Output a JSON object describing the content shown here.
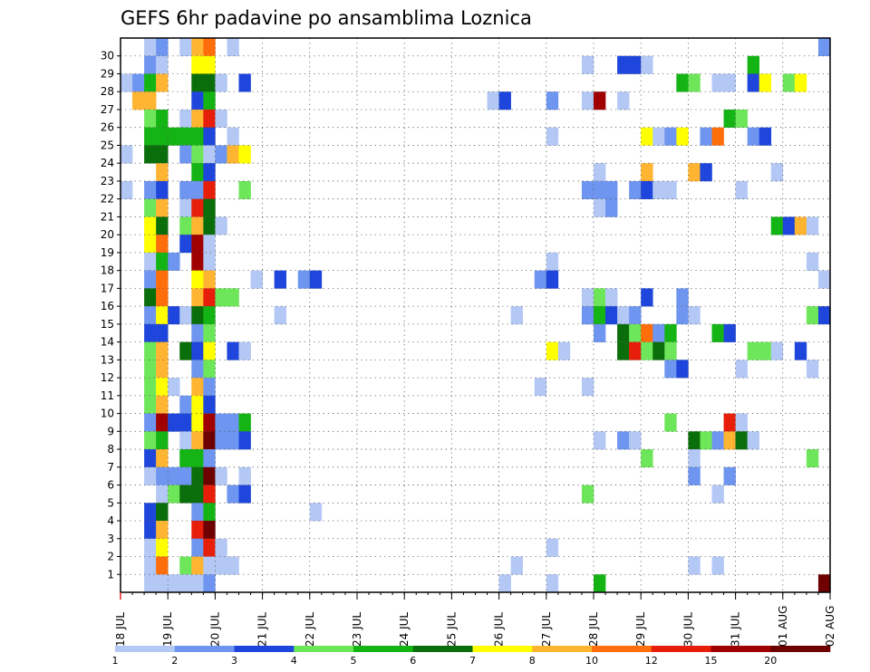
{
  "chart_data": {
    "type": "heatmap",
    "title": "GEFS 6hr padavine po ansamblima Loznica",
    "xlabel": "",
    "ylabel": "",
    "x_tick_labels": [
      "18 JUL",
      "19 JUL",
      "20 JUL",
      "21 JUL",
      "22 JUL",
      "23 JUL",
      "24 JUL",
      "25 JUL",
      "26 JUL",
      "27 JUL",
      "28 JUL",
      "29 JUL",
      "30 JUL",
      "31 JUL",
      "01 AUG",
      "02 AUG"
    ],
    "y_tick_labels": [
      "1",
      "2",
      "3",
      "4",
      "5",
      "6",
      "7",
      "8",
      "9",
      "10",
      "11",
      "12",
      "13",
      "14",
      "15",
      "16",
      "17",
      "18",
      "19",
      "20",
      "21",
      "22",
      "23",
      "24",
      "25",
      "26",
      "27",
      "28",
      "29",
      "30"
    ],
    "x_period": "6hr",
    "grid": true,
    "legend_position": "bottom",
    "legend": {
      "labels": [
        "1",
        "2",
        "3",
        "4",
        "5",
        "6",
        "7",
        "8",
        "10",
        "12",
        "15",
        "20"
      ],
      "colors": [
        "#b4c8f5",
        "#6e96f0",
        "#1e46dc",
        "#6ee65a",
        "#14b414",
        "#0a6e0a",
        "#ffff00",
        "#ffb432",
        "#ff6e0a",
        "#e61e0a",
        "#a00000",
        "#6e0000"
      ]
    },
    "cells": [
      {
        "m": 30,
        "t": [
          [
            2,
            0
          ],
          [
            3,
            1
          ],
          [
            5,
            0
          ],
          [
            6,
            7
          ],
          [
            7,
            8
          ],
          [
            9,
            0
          ],
          [
            59,
            1
          ]
        ]
      },
      {
        "m": 29,
        "t": [
          [
            2,
            1
          ],
          [
            3,
            0
          ],
          [
            6,
            6
          ],
          [
            7,
            6
          ],
          [
            39,
            0
          ],
          [
            42,
            2
          ],
          [
            43,
            2
          ],
          [
            44,
            0
          ],
          [
            53,
            4
          ]
        ]
      },
      {
        "m": 28,
        "t": [
          [
            0,
            0
          ],
          [
            1,
            1
          ],
          [
            2,
            4
          ],
          [
            3,
            7
          ],
          [
            6,
            5
          ],
          [
            7,
            5
          ],
          [
            8,
            0
          ],
          [
            10,
            2
          ],
          [
            47,
            4
          ],
          [
            48,
            3
          ],
          [
            50,
            0
          ],
          [
            51,
            0
          ],
          [
            53,
            2
          ],
          [
            54,
            6
          ],
          [
            56,
            3
          ],
          [
            57,
            6
          ]
        ]
      },
      {
        "m": 27,
        "t": [
          [
            1,
            7
          ],
          [
            2,
            7
          ],
          [
            6,
            2
          ],
          [
            7,
            4
          ],
          [
            31,
            0
          ],
          [
            32,
            2
          ],
          [
            36,
            1
          ],
          [
            39,
            0
          ],
          [
            40,
            10
          ],
          [
            42,
            0
          ]
        ]
      },
      {
        "m": 26,
        "t": [
          [
            2,
            3
          ],
          [
            3,
            4
          ],
          [
            5,
            0
          ],
          [
            6,
            7
          ],
          [
            7,
            9
          ],
          [
            8,
            0
          ],
          [
            51,
            4
          ],
          [
            52,
            3
          ]
        ]
      },
      {
        "m": 25,
        "t": [
          [
            2,
            4
          ],
          [
            3,
            4
          ],
          [
            4,
            4
          ],
          [
            5,
            4
          ],
          [
            6,
            4
          ],
          [
            7,
            2
          ],
          [
            9,
            0
          ],
          [
            36,
            0
          ],
          [
            44,
            6
          ],
          [
            45,
            0
          ],
          [
            46,
            1
          ],
          [
            47,
            6
          ],
          [
            49,
            1
          ],
          [
            50,
            8
          ],
          [
            53,
            1
          ],
          [
            54,
            2
          ]
        ]
      },
      {
        "m": 24,
        "t": [
          [
            0,
            0
          ],
          [
            2,
            5
          ],
          [
            3,
            5
          ],
          [
            5,
            1
          ],
          [
            6,
            3
          ],
          [
            7,
            0
          ],
          [
            8,
            1
          ],
          [
            9,
            7
          ],
          [
            10,
            6
          ]
        ]
      },
      {
        "m": 23,
        "t": [
          [
            3,
            7
          ],
          [
            6,
            4
          ],
          [
            7,
            2
          ],
          [
            40,
            0
          ],
          [
            44,
            7
          ],
          [
            48,
            7
          ],
          [
            49,
            2
          ],
          [
            55,
            0
          ]
        ]
      },
      {
        "m": 22,
        "t": [
          [
            0,
            0
          ],
          [
            2,
            1
          ],
          [
            3,
            2
          ],
          [
            5,
            1
          ],
          [
            6,
            1
          ],
          [
            7,
            9
          ],
          [
            10,
            3
          ],
          [
            39,
            1
          ],
          [
            40,
            1
          ],
          [
            41,
            1
          ],
          [
            43,
            1
          ],
          [
            44,
            2
          ],
          [
            45,
            0
          ],
          [
            46,
            0
          ],
          [
            52,
            0
          ]
        ]
      },
      {
        "m": 21,
        "t": [
          [
            2,
            3
          ],
          [
            3,
            7
          ],
          [
            5,
            0
          ],
          [
            6,
            9
          ],
          [
            7,
            5
          ],
          [
            40,
            0
          ],
          [
            41,
            1
          ]
        ]
      },
      {
        "m": 20,
        "t": [
          [
            2,
            6
          ],
          [
            3,
            5
          ],
          [
            5,
            3
          ],
          [
            6,
            7
          ],
          [
            7,
            5
          ],
          [
            8,
            0
          ],
          [
            55,
            4
          ],
          [
            56,
            2
          ],
          [
            57,
            7
          ],
          [
            58,
            0
          ]
        ]
      },
      {
        "m": 19,
        "t": [
          [
            2,
            6
          ],
          [
            3,
            8
          ],
          [
            5,
            2
          ],
          [
            6,
            10
          ],
          [
            7,
            0
          ]
        ]
      },
      {
        "m": 18,
        "t": [
          [
            2,
            0
          ],
          [
            3,
            4
          ],
          [
            4,
            1
          ],
          [
            6,
            10
          ],
          [
            7,
            0
          ],
          [
            36,
            0
          ],
          [
            58,
            0
          ]
        ]
      },
      {
        "m": 17,
        "t": [
          [
            2,
            1
          ],
          [
            3,
            8
          ],
          [
            6,
            6
          ],
          [
            7,
            7
          ],
          [
            11,
            0
          ],
          [
            13,
            2
          ],
          [
            15,
            1
          ],
          [
            16,
            2
          ],
          [
            35,
            1
          ],
          [
            36,
            2
          ],
          [
            59,
            0
          ]
        ]
      },
      {
        "m": 16,
        "t": [
          [
            2,
            5
          ],
          [
            3,
            8
          ],
          [
            6,
            7
          ],
          [
            7,
            9
          ],
          [
            8,
            3
          ],
          [
            9,
            3
          ],
          [
            39,
            0
          ],
          [
            40,
            3
          ],
          [
            41,
            0
          ],
          [
            44,
            2
          ],
          [
            47,
            1
          ]
        ]
      },
      {
        "m": 15,
        "t": [
          [
            2,
            1
          ],
          [
            3,
            6
          ],
          [
            4,
            2
          ],
          [
            5,
            0
          ],
          [
            6,
            5
          ],
          [
            7,
            4
          ],
          [
            13,
            0
          ],
          [
            33,
            0
          ],
          [
            39,
            1
          ],
          [
            40,
            4
          ],
          [
            41,
            2
          ],
          [
            42,
            0
          ],
          [
            43,
            1
          ],
          [
            47,
            1
          ],
          [
            48,
            0
          ],
          [
            58,
            3
          ],
          [
            59,
            2
          ]
        ]
      },
      {
        "m": 14,
        "t": [
          [
            2,
            2
          ],
          [
            3,
            2
          ],
          [
            6,
            1
          ],
          [
            7,
            3
          ],
          [
            40,
            1
          ],
          [
            42,
            5
          ],
          [
            43,
            3
          ],
          [
            44,
            8
          ],
          [
            45,
            1
          ],
          [
            46,
            4
          ],
          [
            50,
            4
          ],
          [
            51,
            2
          ]
        ]
      },
      {
        "m": 13,
        "t": [
          [
            2,
            3
          ],
          [
            3,
            7
          ],
          [
            5,
            5
          ],
          [
            6,
            2
          ],
          [
            7,
            6
          ],
          [
            9,
            2
          ],
          [
            10,
            0
          ],
          [
            36,
            6
          ],
          [
            37,
            0
          ],
          [
            42,
            5
          ],
          [
            43,
            9
          ],
          [
            44,
            3
          ],
          [
            45,
            5
          ],
          [
            46,
            3
          ],
          [
            53,
            3
          ],
          [
            54,
            3
          ],
          [
            55,
            0
          ],
          [
            57,
            2
          ]
        ]
      },
      {
        "m": 12,
        "t": [
          [
            2,
            3
          ],
          [
            3,
            7
          ],
          [
            6,
            1
          ],
          [
            7,
            3
          ],
          [
            46,
            1
          ],
          [
            47,
            2
          ],
          [
            52,
            0
          ],
          [
            58,
            0
          ]
        ]
      },
      {
        "m": 11,
        "t": [
          [
            2,
            3
          ],
          [
            3,
            6
          ],
          [
            4,
            0
          ],
          [
            6,
            7
          ],
          [
            7,
            1
          ],
          [
            35,
            0
          ],
          [
            39,
            0
          ]
        ]
      },
      {
        "m": 10,
        "t": [
          [
            2,
            3
          ],
          [
            3,
            7
          ],
          [
            5,
            1
          ],
          [
            6,
            6
          ],
          [
            7,
            2
          ]
        ]
      },
      {
        "m": 9,
        "t": [
          [
            2,
            1
          ],
          [
            3,
            10
          ],
          [
            4,
            2
          ],
          [
            5,
            2
          ],
          [
            6,
            6
          ],
          [
            7,
            10
          ],
          [
            8,
            1
          ],
          [
            9,
            1
          ],
          [
            10,
            4
          ],
          [
            46,
            3
          ],
          [
            51,
            9
          ],
          [
            52,
            0
          ]
        ]
      },
      {
        "m": 8,
        "t": [
          [
            2,
            3
          ],
          [
            3,
            4
          ],
          [
            5,
            0
          ],
          [
            6,
            7
          ],
          [
            7,
            11
          ],
          [
            8,
            1
          ],
          [
            9,
            1
          ],
          [
            10,
            2
          ],
          [
            40,
            0
          ],
          [
            42,
            1
          ],
          [
            43,
            0
          ],
          [
            48,
            5
          ],
          [
            49,
            3
          ],
          [
            50,
            1
          ],
          [
            51,
            7
          ],
          [
            52,
            5
          ],
          [
            53,
            0
          ]
        ]
      },
      {
        "m": 7,
        "t": [
          [
            2,
            2
          ],
          [
            3,
            7
          ],
          [
            5,
            4
          ],
          [
            6,
            4
          ],
          [
            7,
            1
          ],
          [
            44,
            3
          ],
          [
            48,
            0
          ],
          [
            58,
            3
          ]
        ]
      },
      {
        "m": 6,
        "t": [
          [
            2,
            0
          ],
          [
            3,
            1
          ],
          [
            4,
            1
          ],
          [
            5,
            1
          ],
          [
            6,
            5
          ],
          [
            7,
            11
          ],
          [
            8,
            0
          ],
          [
            10,
            0
          ],
          [
            48,
            1
          ],
          [
            51,
            1
          ]
        ]
      },
      {
        "m": 5,
        "t": [
          [
            3,
            0
          ],
          [
            4,
            3
          ],
          [
            5,
            5
          ],
          [
            6,
            5
          ],
          [
            7,
            9
          ],
          [
            9,
            1
          ],
          [
            10,
            2
          ],
          [
            39,
            3
          ],
          [
            50,
            0
          ]
        ]
      },
      {
        "m": 4,
        "t": [
          [
            2,
            2
          ],
          [
            3,
            5
          ],
          [
            6,
            1
          ],
          [
            7,
            4
          ],
          [
            16,
            0
          ]
        ]
      },
      {
        "m": 3,
        "t": [
          [
            2,
            2
          ],
          [
            3,
            7
          ],
          [
            6,
            9
          ],
          [
            7,
            11
          ]
        ]
      },
      {
        "m": 2,
        "t": [
          [
            2,
            0
          ],
          [
            3,
            6
          ],
          [
            6,
            1
          ],
          [
            7,
            9
          ],
          [
            8,
            0
          ],
          [
            36,
            0
          ]
        ]
      },
      {
        "m": 1,
        "t": [
          [
            2,
            0
          ],
          [
            3,
            8
          ],
          [
            5,
            3
          ],
          [
            6,
            7
          ],
          [
            7,
            0
          ],
          [
            8,
            0
          ],
          [
            9,
            0
          ],
          [
            33,
            0
          ],
          [
            48,
            0
          ],
          [
            50,
            0
          ]
        ]
      },
      {
        "m": 0,
        "t": [
          [
            2,
            0
          ],
          [
            3,
            0
          ],
          [
            4,
            0
          ],
          [
            5,
            0
          ],
          [
            6,
            0
          ],
          [
            7,
            1
          ],
          [
            32,
            0
          ],
          [
            36,
            0
          ],
          [
            40,
            4
          ],
          [
            59,
            11
          ]
        ]
      }
    ]
  }
}
